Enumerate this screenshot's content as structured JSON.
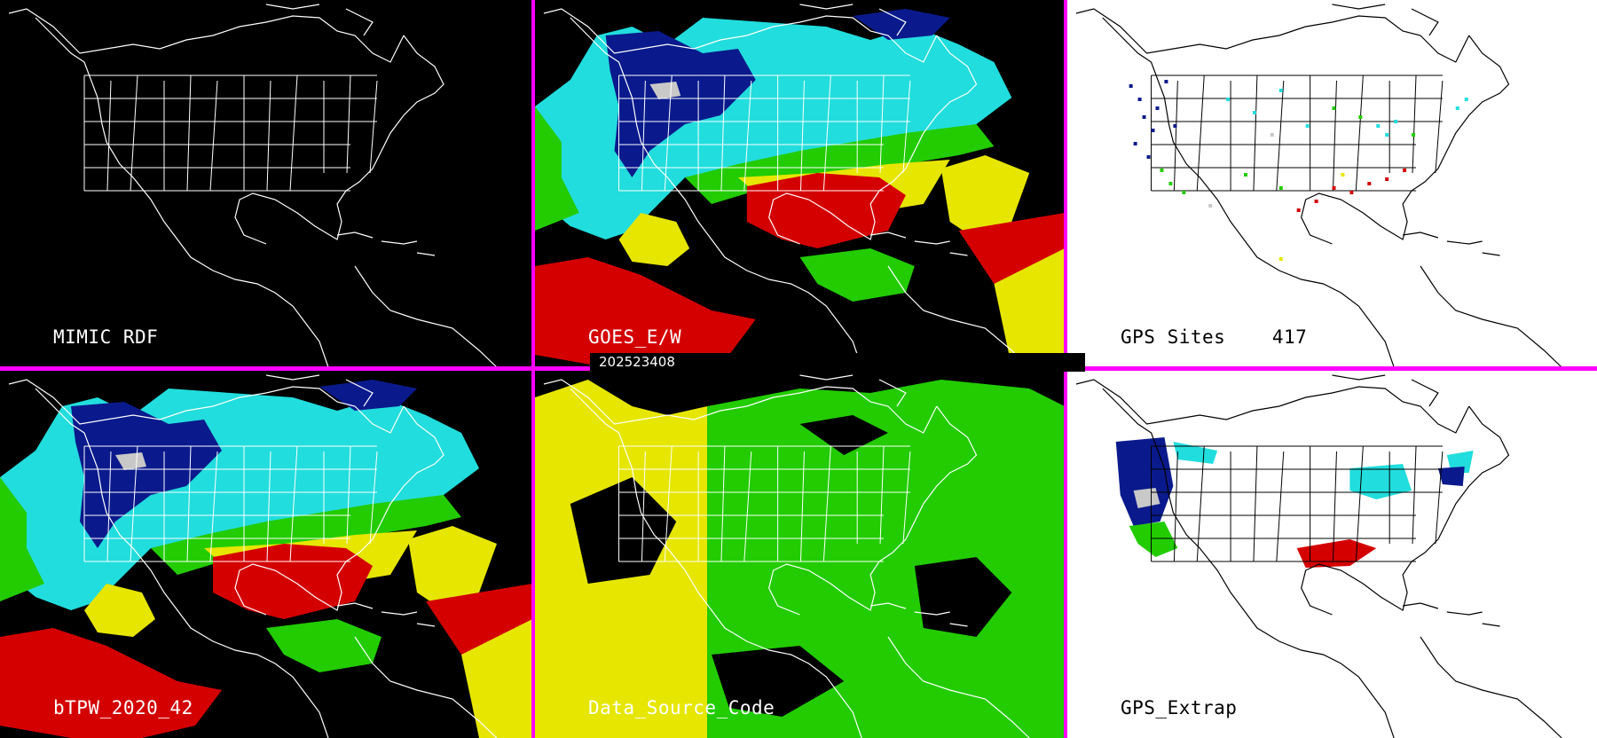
{
  "panels": [
    {
      "id": "mimic",
      "label": "MIMIC RDF",
      "style": "dark",
      "fill": "none"
    },
    {
      "id": "goes",
      "label": "GOES_E/W",
      "style": "dark",
      "fill": "tpw"
    },
    {
      "id": "gps_sites",
      "label": "GPS Sites",
      "count": "417",
      "style": "light",
      "fill": "sites"
    },
    {
      "id": "btpw",
      "label": "bTPW_2020_42",
      "style": "dark",
      "fill": "tpw"
    },
    {
      "id": "dsc",
      "label": "Data_Source_Code",
      "style": "dark",
      "fill": "source"
    },
    {
      "id": "gps_extrap",
      "label": "GPS_Extrap",
      "style": "light",
      "fill": "extrap"
    }
  ],
  "timestamp": "202523408",
  "colors": {
    "divider": "#ff00ff",
    "dark_bg": "#000000",
    "light_bg": "#ffffff",
    "red": "#d40000",
    "yellow": "#e6e600",
    "green": "#22cc00",
    "cyan": "#22dddd",
    "blue": "#0a1a8c",
    "gray": "#c8c8c8"
  }
}
